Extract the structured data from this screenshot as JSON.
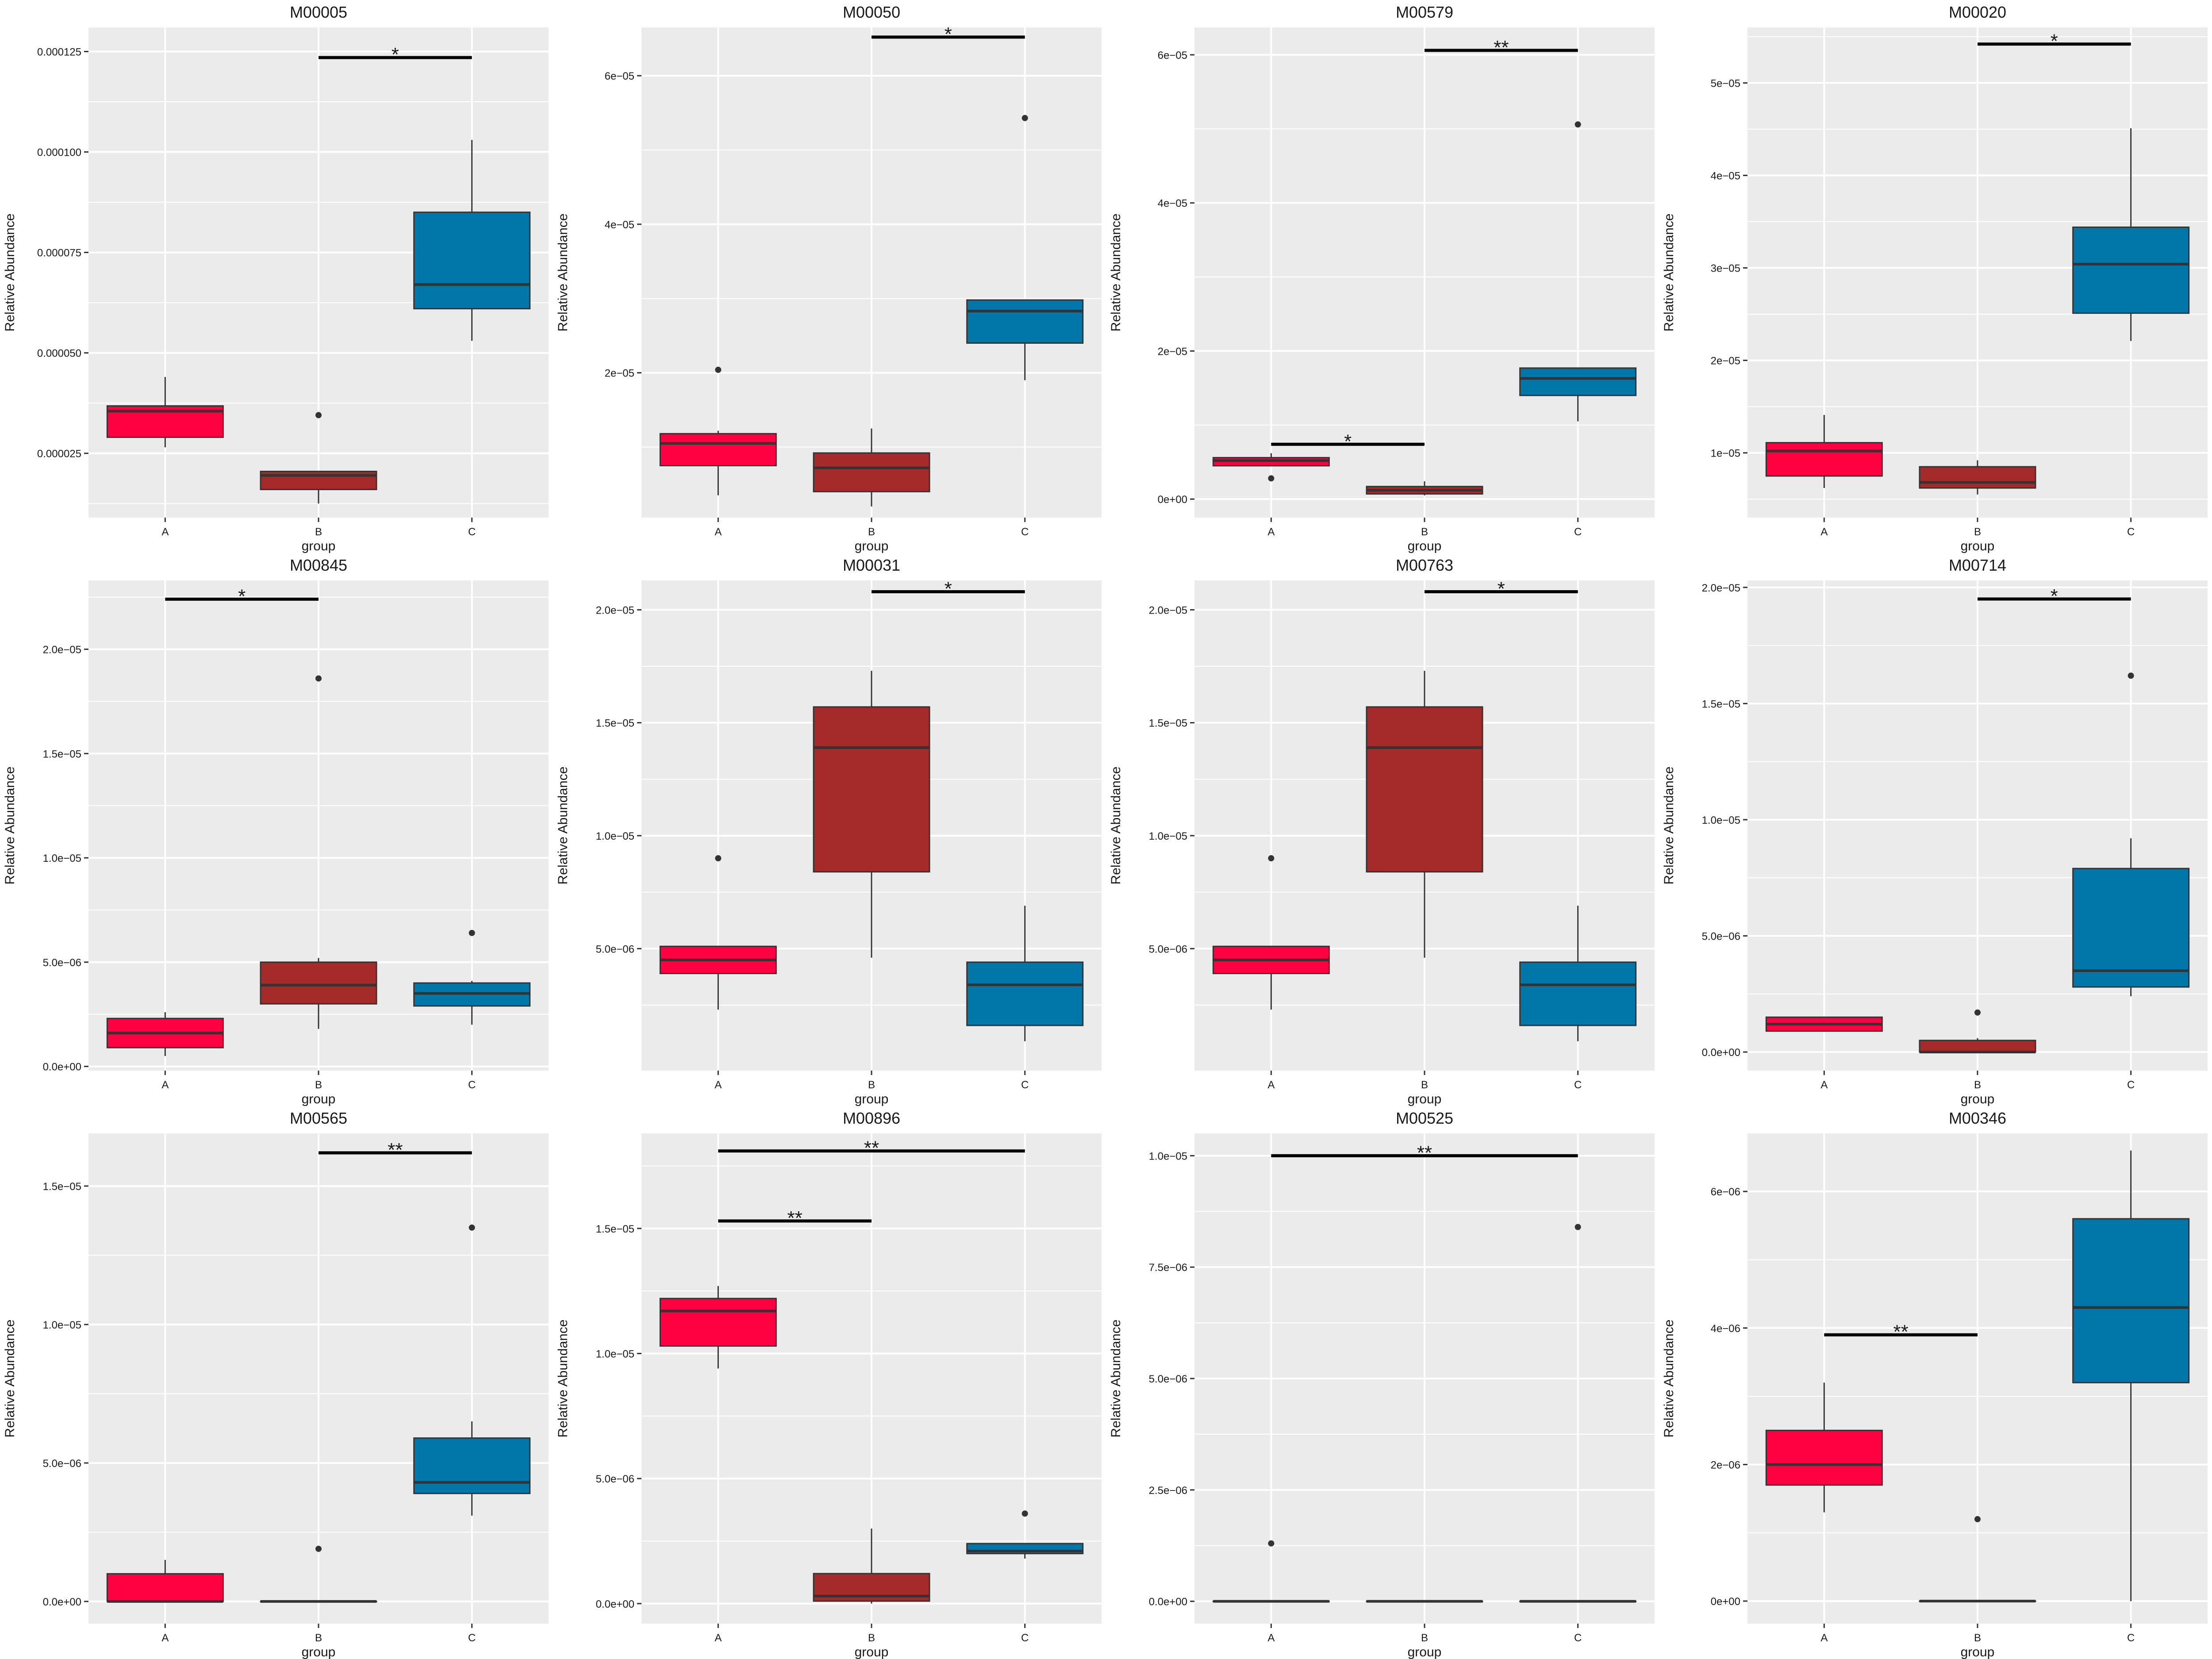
{
  "colors": {
    "panel_bg": "#EBEBEB",
    "gridline": "#FFFFFF",
    "A": "#FF0040",
    "B": "#A52A2A",
    "C": "#0077A8",
    "median": "#333333",
    "outline": "#333333",
    "signif": "#000000"
  },
  "chart_data": [
    {
      "type": "box",
      "title": "M00005",
      "xlabel": "group",
      "ylabel": "Relative Abundance",
      "categories": [
        "A",
        "B",
        "C"
      ],
      "ylim": [
        9e-06,
        0.000131
      ],
      "yticks": [
        2.5e-05,
        5e-05,
        7.5e-05,
        0.0001,
        0.000125
      ],
      "ytick_labels": [
        "0.000025",
        "0.000050",
        "0.000075",
        "0.000100",
        "0.000125"
      ],
      "boxes": [
        {
          "group": "A",
          "whisker_low": 2.65e-05,
          "q1": 2.9e-05,
          "median": 3.55e-05,
          "q3": 3.68e-05,
          "whisker_high": 4.4e-05,
          "outliers": []
        },
        {
          "group": "B",
          "whisker_low": 1.25e-05,
          "q1": 1.6e-05,
          "median": 1.95e-05,
          "q3": 2.05e-05,
          "whisker_high": 2.05e-05,
          "outliers": [
            3.45e-05
          ]
        },
        {
          "group": "C",
          "whisker_low": 5.3e-05,
          "q1": 6.1e-05,
          "median": 6.7e-05,
          "q3": 8.5e-05,
          "whisker_high": 0.000103,
          "outliers": []
        }
      ],
      "significance": [
        {
          "from": "B",
          "to": "C",
          "y": 0.0001235,
          "label": "*"
        }
      ]
    },
    {
      "type": "box",
      "title": "M00050",
      "xlabel": "group",
      "ylabel": "Relative Abundance",
      "categories": [
        "A",
        "B",
        "C"
      ],
      "ylim": [
        5e-07,
        6.65e-05
      ],
      "yticks": [
        2e-05,
        4e-05,
        6e-05
      ],
      "ytick_labels": [
        "2e−05",
        "4e−05",
        "6e−05"
      ],
      "boxes": [
        {
          "group": "A",
          "whisker_low": 3.5e-06,
          "q1": 7.5e-06,
          "median": 1.05e-05,
          "q3": 1.18e-05,
          "whisker_high": 1.22e-05,
          "outliers": [
            2.04e-05
          ]
        },
        {
          "group": "B",
          "whisker_low": 2e-06,
          "q1": 4e-06,
          "median": 7.2e-06,
          "q3": 9.2e-06,
          "whisker_high": 1.25e-05,
          "outliers": []
        },
        {
          "group": "C",
          "whisker_low": 1.9e-05,
          "q1": 2.4e-05,
          "median": 2.83e-05,
          "q3": 2.98e-05,
          "whisker_high": 2.98e-05,
          "outliers": [
            5.43e-05
          ]
        }
      ],
      "significance": [
        {
          "from": "B",
          "to": "C",
          "y": 6.52e-05,
          "label": "*"
        }
      ]
    },
    {
      "type": "box",
      "title": "M00579",
      "xlabel": "group",
      "ylabel": "Relative Abundance",
      "categories": [
        "A",
        "B",
        "C"
      ],
      "ylim": [
        -2.5e-06,
        6.37e-05
      ],
      "yticks": [
        0,
        2e-05,
        4e-05,
        6e-05
      ],
      "ytick_labels": [
        "0e+00",
        "2e−05",
        "4e−05",
        "6e−05"
      ],
      "boxes": [
        {
          "group": "A",
          "whisker_low": 4.5e-06,
          "q1": 4.5e-06,
          "median": 5.2e-06,
          "q3": 5.6e-06,
          "whisker_high": 6.2e-06,
          "outliers": [
            2.8e-06
          ]
        },
        {
          "group": "B",
          "whisker_low": 5e-07,
          "q1": 7e-07,
          "median": 1.2e-06,
          "q3": 1.7e-06,
          "whisker_high": 2.4e-06,
          "outliers": []
        },
        {
          "group": "C",
          "whisker_low": 1.05e-05,
          "q1": 1.4e-05,
          "median": 1.63e-05,
          "q3": 1.77e-05,
          "whisker_high": 1.77e-05,
          "outliers": [
            5.06e-05
          ]
        }
      ],
      "significance": [
        {
          "from": "A",
          "to": "B",
          "y": 7.4e-06,
          "label": "*"
        },
        {
          "from": "B",
          "to": "C",
          "y": 6.06e-05,
          "label": "**"
        }
      ]
    },
    {
      "type": "box",
      "title": "M00020",
      "xlabel": "group",
      "ylabel": "Relative Abundance",
      "categories": [
        "A",
        "B",
        "C"
      ],
      "ylim": [
        3e-06,
        5.6e-05
      ],
      "yticks": [
        1e-05,
        2e-05,
        3e-05,
        4e-05,
        5e-05
      ],
      "ytick_labels": [
        "1e−05",
        "2e−05",
        "3e−05",
        "4e−05",
        "5e−05"
      ],
      "boxes": [
        {
          "group": "A",
          "whisker_low": 6.2e-06,
          "q1": 7.5e-06,
          "median": 1.02e-05,
          "q3": 1.11e-05,
          "whisker_high": 1.41e-05,
          "outliers": []
        },
        {
          "group": "B",
          "whisker_low": 5.5e-06,
          "q1": 6.2e-06,
          "median": 6.8e-06,
          "q3": 8.5e-06,
          "whisker_high": 9.2e-06,
          "outliers": []
        },
        {
          "group": "C",
          "whisker_low": 2.21e-05,
          "q1": 2.51e-05,
          "median": 3.04e-05,
          "q3": 3.44e-05,
          "whisker_high": 4.51e-05,
          "outliers": []
        }
      ],
      "significance": [
        {
          "from": "B",
          "to": "C",
          "y": 5.42e-05,
          "label": "*"
        }
      ]
    },
    {
      "type": "box",
      "title": "M00845",
      "xlabel": "group",
      "ylabel": "Relative Abundance",
      "categories": [
        "A",
        "B",
        "C"
      ],
      "ylim": [
        -2e-07,
        2.33e-05
      ],
      "yticks": [
        0,
        5e-06,
        1e-05,
        1.5e-05,
        2e-05
      ],
      "ytick_labels": [
        "0.0e+00",
        "5.0e−06",
        "1.0e−05",
        "1.5e−05",
        "2.0e−05"
      ],
      "boxes": [
        {
          "group": "A",
          "whisker_low": 5e-07,
          "q1": 9e-07,
          "median": 1.6e-06,
          "q3": 2.3e-06,
          "whisker_high": 2.6e-06,
          "outliers": []
        },
        {
          "group": "B",
          "whisker_low": 1.8e-06,
          "q1": 3e-06,
          "median": 3.9e-06,
          "q3": 5e-06,
          "whisker_high": 5.2e-06,
          "outliers": [
            1.86e-05
          ]
        },
        {
          "group": "C",
          "whisker_low": 2e-06,
          "q1": 2.9e-06,
          "median": 3.5e-06,
          "q3": 4e-06,
          "whisker_high": 4.1e-06,
          "outliers": [
            6.4e-06
          ]
        }
      ],
      "significance": [
        {
          "from": "A",
          "to": "B",
          "y": 2.24e-05,
          "label": "*"
        }
      ]
    },
    {
      "type": "box",
      "title": "M00031",
      "xlabel": "group",
      "ylabel": "Relative Abundance",
      "categories": [
        "A",
        "B",
        "C"
      ],
      "ylim": [
        -4e-07,
        2.13e-05
      ],
      "yticks": [
        5e-06,
        1e-05,
        1.5e-05,
        2e-05
      ],
      "ytick_labels": [
        "5.0e−06",
        "1.0e−05",
        "1.5e−05",
        "2.0e−05"
      ],
      "boxes": [
        {
          "group": "A",
          "whisker_low": 2.3e-06,
          "q1": 3.9e-06,
          "median": 4.5e-06,
          "q3": 5.1e-06,
          "whisker_high": 5.1e-06,
          "outliers": [
            9e-06
          ]
        },
        {
          "group": "B",
          "whisker_low": 4.6e-06,
          "q1": 8.4e-06,
          "median": 1.39e-05,
          "q3": 1.57e-05,
          "whisker_high": 1.73e-05,
          "outliers": []
        },
        {
          "group": "C",
          "whisker_low": 9e-07,
          "q1": 1.6e-06,
          "median": 3.4e-06,
          "q3": 4.4e-06,
          "whisker_high": 6.9e-06,
          "outliers": []
        }
      ],
      "significance": [
        {
          "from": "B",
          "to": "C",
          "y": 2.08e-05,
          "label": "*"
        }
      ]
    },
    {
      "type": "box",
      "title": "M00763",
      "xlabel": "group",
      "ylabel": "Relative Abundance",
      "categories": [
        "A",
        "B",
        "C"
      ],
      "ylim": [
        -4e-07,
        2.13e-05
      ],
      "yticks": [
        5e-06,
        1e-05,
        1.5e-05,
        2e-05
      ],
      "ytick_labels": [
        "5.0e−06",
        "1.0e−05",
        "1.5e−05",
        "2.0e−05"
      ],
      "boxes": [
        {
          "group": "A",
          "whisker_low": 2.3e-06,
          "q1": 3.9e-06,
          "median": 4.5e-06,
          "q3": 5.1e-06,
          "whisker_high": 5.1e-06,
          "outliers": [
            9e-06
          ]
        },
        {
          "group": "B",
          "whisker_low": 4.6e-06,
          "q1": 8.4e-06,
          "median": 1.39e-05,
          "q3": 1.57e-05,
          "whisker_high": 1.73e-05,
          "outliers": []
        },
        {
          "group": "C",
          "whisker_low": 9e-07,
          "q1": 1.6e-06,
          "median": 3.4e-06,
          "q3": 4.4e-06,
          "whisker_high": 6.9e-06,
          "outliers": []
        }
      ],
      "significance": [
        {
          "from": "B",
          "to": "C",
          "y": 2.08e-05,
          "label": "*"
        }
      ]
    },
    {
      "type": "box",
      "title": "M00714",
      "xlabel": "group",
      "ylabel": "Relative Abundance",
      "categories": [
        "A",
        "B",
        "C"
      ],
      "ylim": [
        -8e-07,
        2.03e-05
      ],
      "yticks": [
        0,
        5e-06,
        1e-05,
        1.5e-05,
        2e-05
      ],
      "ytick_labels": [
        "0.0e+00",
        "5.0e−06",
        "1.0e−05",
        "1.5e−05",
        "2.0e−05"
      ],
      "boxes": [
        {
          "group": "A",
          "whisker_low": 9e-07,
          "q1": 9e-07,
          "median": 1.2e-06,
          "q3": 1.5e-06,
          "whisker_high": 1.5e-06,
          "outliers": []
        },
        {
          "group": "B",
          "whisker_low": 0,
          "q1": 0,
          "median": 0,
          "q3": 5e-07,
          "whisker_high": 6e-07,
          "outliers": [
            1.7e-06
          ]
        },
        {
          "group": "C",
          "whisker_low": 2.4e-06,
          "q1": 2.8e-06,
          "median": 3.5e-06,
          "q3": 7.9e-06,
          "whisker_high": 9.2e-06,
          "outliers": [
            1.62e-05
          ]
        }
      ],
      "significance": [
        {
          "from": "B",
          "to": "C",
          "y": 1.95e-05,
          "label": "*"
        }
      ]
    },
    {
      "type": "box",
      "title": "M00565",
      "xlabel": "group",
      "ylabel": "Relative Abundance",
      "categories": [
        "A",
        "B",
        "C"
      ],
      "ylim": [
        -8e-07,
        1.69e-05
      ],
      "yticks": [
        0,
        5e-06,
        1e-05,
        1.5e-05
      ],
      "ytick_labels": [
        "0.0e+00",
        "5.0e−06",
        "1.0e−05",
        "1.5e−05"
      ],
      "boxes": [
        {
          "group": "A",
          "whisker_low": 0,
          "q1": 0,
          "median": 0,
          "q3": 1e-06,
          "whisker_high": 1.5e-06,
          "outliers": []
        },
        {
          "group": "B",
          "whisker_low": 0,
          "q1": 0,
          "median": 0,
          "q3": 0,
          "whisker_high": 0,
          "outliers": [
            1.9e-06
          ]
        },
        {
          "group": "C",
          "whisker_low": 3.1e-06,
          "q1": 3.9e-06,
          "median": 4.3e-06,
          "q3": 5.9e-06,
          "whisker_high": 6.5e-06,
          "outliers": [
            1.35e-05
          ]
        }
      ],
      "significance": [
        {
          "from": "B",
          "to": "C",
          "y": 1.62e-05,
          "label": "**"
        }
      ]
    },
    {
      "type": "box",
      "title": "M00896",
      "xlabel": "group",
      "ylabel": "Relative Abundance",
      "categories": [
        "A",
        "B",
        "C"
      ],
      "ylim": [
        -8e-07,
        1.88e-05
      ],
      "yticks": [
        0,
        5e-06,
        1e-05,
        1.5e-05
      ],
      "ytick_labels": [
        "0.0e+00",
        "5.0e−06",
        "1.0e−05",
        "1.5e−05"
      ],
      "boxes": [
        {
          "group": "A",
          "whisker_low": 9.4e-06,
          "q1": 1.03e-05,
          "median": 1.17e-05,
          "q3": 1.22e-05,
          "whisker_high": 1.27e-05,
          "outliers": []
        },
        {
          "group": "B",
          "whisker_low": 0,
          "q1": 1e-07,
          "median": 3e-07,
          "q3": 1.2e-06,
          "whisker_high": 3e-06,
          "outliers": []
        },
        {
          "group": "C",
          "whisker_low": 1.8e-06,
          "q1": 2e-06,
          "median": 2.1e-06,
          "q3": 2.4e-06,
          "whisker_high": 2.4e-06,
          "outliers": [
            3.6e-06
          ]
        }
      ],
      "significance": [
        {
          "from": "A",
          "to": "B",
          "y": 1.53e-05,
          "label": "**"
        },
        {
          "from": "A",
          "to": "C",
          "y": 1.81e-05,
          "label": "**"
        }
      ]
    },
    {
      "type": "box",
      "title": "M00525",
      "xlabel": "group",
      "ylabel": "Relative Abundance",
      "categories": [
        "A",
        "B",
        "C"
      ],
      "ylim": [
        -5e-07,
        1.05e-05
      ],
      "yticks": [
        0,
        2.5e-06,
        5e-06,
        7.5e-06,
        1e-05
      ],
      "ytick_labels": [
        "0.0e+00",
        "2.5e−06",
        "5.0e−06",
        "7.5e−06",
        "1.0e−05"
      ],
      "boxes": [
        {
          "group": "A",
          "whisker_low": 0,
          "q1": 0,
          "median": 0,
          "q3": 0,
          "whisker_high": 0,
          "outliers": [
            1.3e-06
          ]
        },
        {
          "group": "B",
          "whisker_low": 0,
          "q1": 0,
          "median": 0,
          "q3": 0,
          "whisker_high": 0,
          "outliers": []
        },
        {
          "group": "C",
          "whisker_low": 0,
          "q1": 0,
          "median": 0,
          "q3": 0,
          "whisker_high": 0,
          "outliers": [
            8.4e-06
          ]
        }
      ],
      "significance": [
        {
          "from": "A",
          "to": "C",
          "y": 1e-05,
          "label": "**"
        }
      ]
    },
    {
      "type": "box",
      "title": "M00346",
      "xlabel": "group",
      "ylabel": "Relative Abundance",
      "categories": [
        "A",
        "B",
        "C"
      ],
      "ylim": [
        -3.3e-07,
        6.85e-06
      ],
      "yticks": [
        0,
        2e-06,
        4e-06,
        6e-06
      ],
      "ytick_labels": [
        "0e+00",
        "2e−06",
        "4e−06",
        "6e−06"
      ],
      "boxes": [
        {
          "group": "A",
          "whisker_low": 1.3e-06,
          "q1": 1.7e-06,
          "median": 2e-06,
          "q3": 2.5e-06,
          "whisker_high": 3.2e-06,
          "outliers": []
        },
        {
          "group": "B",
          "whisker_low": 0,
          "q1": 0,
          "median": 0,
          "q3": 0,
          "whisker_high": 0,
          "outliers": [
            1.2e-06
          ]
        },
        {
          "group": "C",
          "whisker_low": 0,
          "q1": 3.2e-06,
          "median": 4.3e-06,
          "q3": 5.6e-06,
          "whisker_high": 6.6e-06,
          "outliers": []
        }
      ],
      "significance": [
        {
          "from": "A",
          "to": "B",
          "y": 3.9e-06,
          "label": "**"
        }
      ]
    }
  ]
}
